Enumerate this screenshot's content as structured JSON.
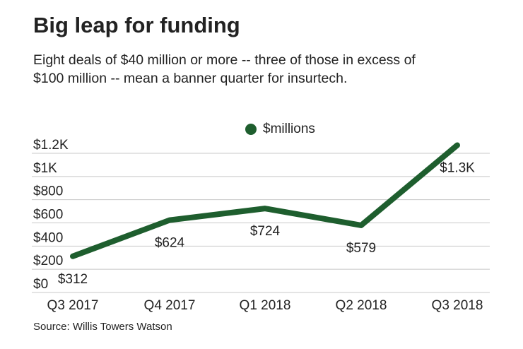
{
  "chart_data": {
    "type": "line",
    "title": "Big leap for funding",
    "subtitle": "Eight deals of $40 million or more -- three of those in excess of $100 million -- mean a banner quarter for insurtech.",
    "source": "Source: Willis Towers Watson",
    "categories": [
      "Q3 2017",
      "Q4 2017",
      "Q1 2018",
      "Q2 2018",
      "Q3 2018"
    ],
    "series": [
      {
        "name": "$millions",
        "color": "#1e5e2e",
        "values": [
          312,
          624,
          724,
          579,
          1270
        ],
        "value_labels": [
          "$312",
          "$624",
          "$724",
          "$579",
          "$1.3K"
        ]
      }
    ],
    "ylim": [
      0,
      1200
    ],
    "yticks": [
      {
        "value": 0,
        "label": "$0"
      },
      {
        "value": 200,
        "label": "$200"
      },
      {
        "value": 400,
        "label": "$400"
      },
      {
        "value": 600,
        "label": "$600"
      },
      {
        "value": 800,
        "label": "$800"
      },
      {
        "value": 1000,
        "label": "$1K"
      },
      {
        "value": 1200,
        "label": "$1.2K"
      }
    ],
    "grid": true
  }
}
